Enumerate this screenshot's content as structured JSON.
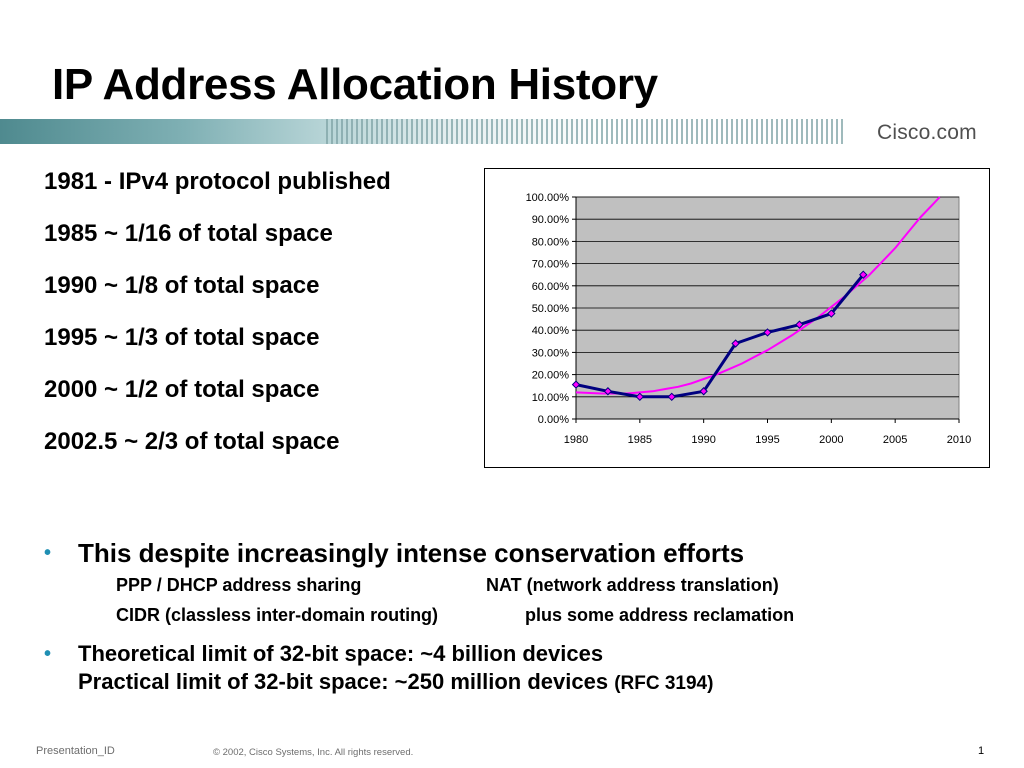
{
  "slide": {
    "title": "IP Address Allocation History",
    "logo": "Cisco.com",
    "timeline": [
      "1981  -  IPv4 protocol published",
      "1985  ~ 1/16 of total space",
      "1990  ~ 1/8 of total space",
      "1995  ~ 1/3 of total space",
      "2000  ~ 1/2 of total space",
      "2002.5  ~ 2/3 of total space"
    ],
    "bullet1": "This despite increasingly intense conservation efforts",
    "sub1_left": "PPP / DHCP address sharing",
    "sub1_right": "NAT (network address translation)",
    "sub2_left": "CIDR (classless inter-domain routing)",
    "sub2_right": "plus some address reclamation",
    "bullet2_line1": "Theoretical limit of 32-bit space:  ~4 billion devices",
    "bullet2_line2": "Practical limit of 32-bit space: ~250 million devices",
    "bullet2_ref": "(RFC 3194)",
    "bullet_symbol": "•"
  },
  "footer": {
    "left": "Presentation_ID",
    "center": "© 2002, Cisco Systems, Inc. All rights reserved.",
    "page": "1"
  },
  "colors": {
    "plot_background": "#c0c0c0",
    "actual_series": "#000080",
    "trend_series": "#ff00ff",
    "band_accent": "#4f8a8f",
    "bullet": "#1f8fb3"
  },
  "chart_data": {
    "type": "line",
    "xlim": [
      1980,
      2010
    ],
    "ylim": [
      0,
      100
    ],
    "xticks": [
      "1980",
      "1985",
      "1990",
      "1995",
      "2000",
      "2005",
      "2010"
    ],
    "yticks": [
      "0.00%",
      "10.00%",
      "20.00%",
      "30.00%",
      "40.00%",
      "50.00%",
      "60.00%",
      "70.00%",
      "80.00%",
      "90.00%",
      "100.00%"
    ],
    "grid": true,
    "legend": "none",
    "series": [
      {
        "color": "#000080",
        "markers": true,
        "x": [
          1980,
          1982.5,
          1985,
          1987.5,
          1990,
          1992.5,
          1995,
          1997.5,
          2000,
          2002.5
        ],
        "y": [
          15.5,
          12.5,
          10,
          10,
          12.5,
          34,
          39,
          42.5,
          47.5,
          65
        ]
      },
      {
        "color": "#ff00ff",
        "markers": false,
        "x": [
          1980,
          1982,
          1984,
          1985,
          1986,
          1987,
          1988,
          1989,
          1990,
          1991,
          1992,
          1993,
          1994,
          1995,
          1996,
          1997,
          1998,
          1999,
          2000,
          2001,
          2002,
          2003,
          2004,
          2005,
          2006,
          2007,
          2008,
          2008.5
        ],
        "y": [
          12,
          11.5,
          11.5,
          12,
          12.5,
          13.5,
          14.5,
          16,
          18,
          20,
          22.5,
          25,
          28,
          31,
          34.5,
          38,
          42,
          46,
          50.5,
          55,
          60,
          65,
          71,
          77,
          84,
          91,
          97,
          100
        ]
      }
    ]
  }
}
